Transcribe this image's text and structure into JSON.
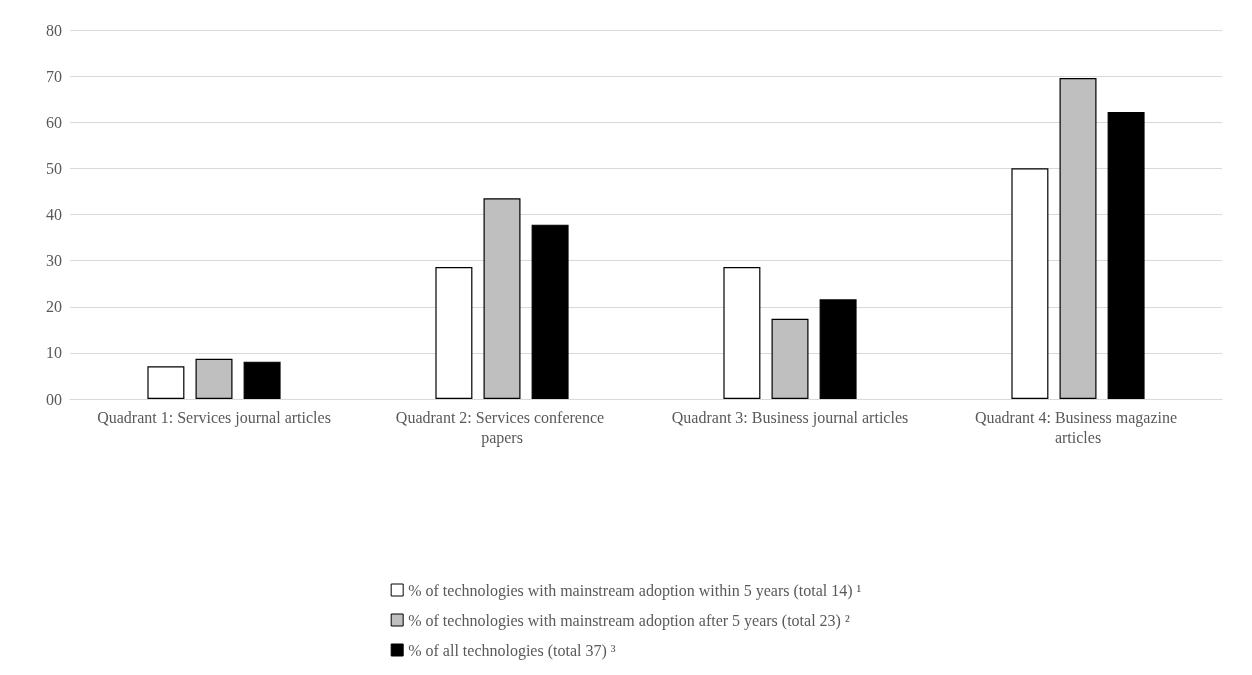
{
  "chart_data": {
    "type": "bar",
    "categories": [
      "Quadrant 1: Services journal articles",
      "Quadrant 2: Services conference papers",
      "Quadrant 3: Business journal articles",
      "Quadrant 4: Business magazine articles"
    ],
    "series": [
      {
        "name": "% of technologies with mainstream adoption within 5 years (total 14) ¹",
        "color": "#ffffff",
        "values": [
          7.1,
          28.6,
          28.6,
          50
        ]
      },
      {
        "name": "% of technologies with mainstream adoption after 5 years (total 23) ²",
        "color": "#bfbfbf",
        "values": [
          8.7,
          43.5,
          17.4,
          69.6
        ]
      },
      {
        "name": "% of all technologies (total 37) ³",
        "color": "#000000",
        "values": [
          8.1,
          37.8,
          21.6,
          62.2
        ]
      }
    ],
    "ylim": [
      0,
      80
    ],
    "yticks": [
      {
        "value": 0,
        "label": "00"
      },
      10,
      20,
      30,
      40,
      50,
      60,
      70,
      80
    ],
    "grid": "y",
    "legend": "bottom"
  }
}
